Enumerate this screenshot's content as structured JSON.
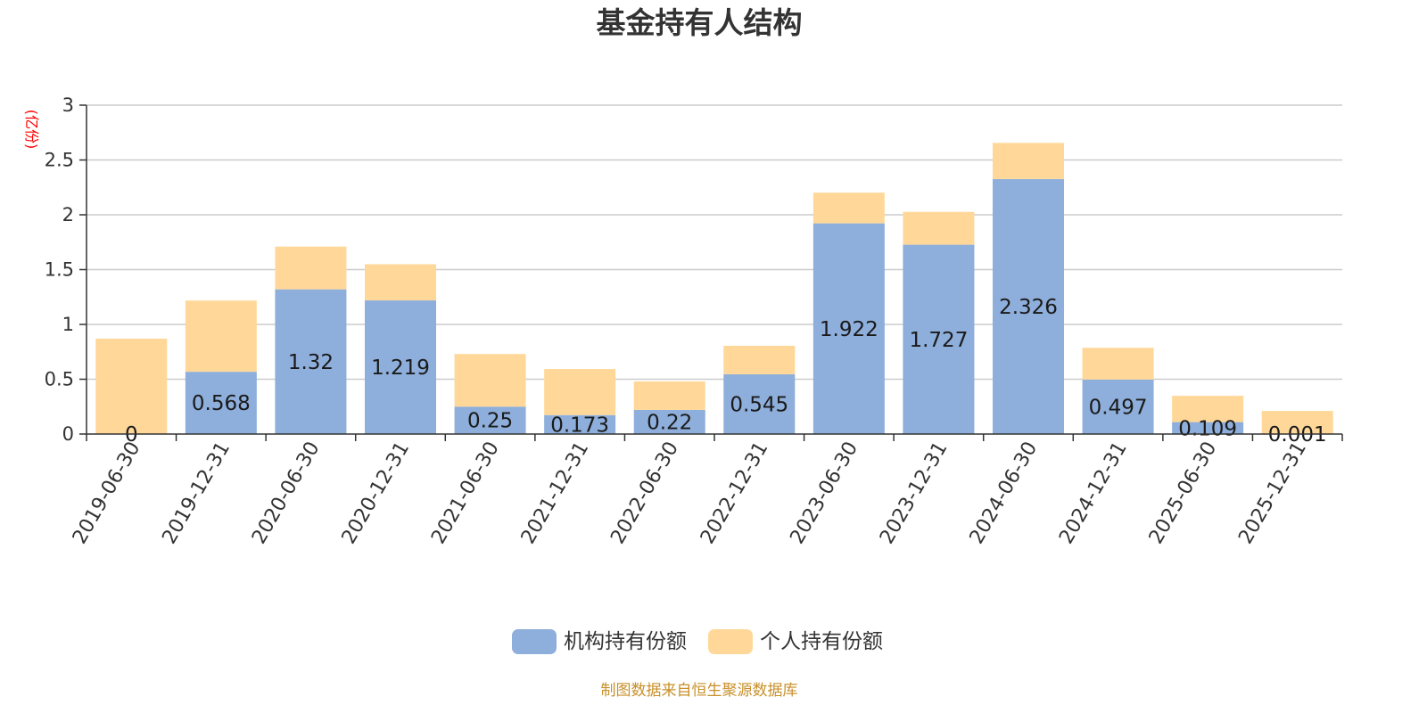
{
  "chart_data": {
    "type": "bar",
    "stacked": true,
    "title": "基金持有人结构",
    "ylabel": "(亿份)",
    "xlabel": "",
    "ylim": [
      0,
      3
    ],
    "yticks": [
      0,
      0.5,
      1,
      1.5,
      2,
      2.5,
      3
    ],
    "ytick_labels": [
      "0",
      "0.5",
      "1",
      "1.5",
      "2",
      "2.5",
      "3"
    ],
    "grid": true,
    "legend_position": "bottom-center",
    "categories": [
      "2019-06-30",
      "2019-12-31",
      "2020-06-30",
      "2020-12-31",
      "2021-06-30",
      "2021-12-31",
      "2022-06-30",
      "2022-12-31",
      "2023-06-30",
      "2023-12-31",
      "2024-06-30",
      "2024-12-31",
      "2025-06-30",
      "2025-12-31"
    ],
    "series": [
      {
        "name": "机构持有份额",
        "color": "#8eaedb",
        "values": [
          0,
          0.568,
          1.32,
          1.219,
          0.25,
          0.173,
          0.22,
          0.545,
          1.922,
          1.727,
          2.326,
          0.497,
          0.109,
          0.001
        ],
        "labels": [
          "0",
          "0.568",
          "1.32",
          "1.219",
          "0.25",
          "0.173",
          "0.22",
          "0.545",
          "1.922",
          "1.727",
          "2.326",
          "0.497",
          "0.109",
          "0.001"
        ]
      },
      {
        "name": "个人持有份额",
        "color": "#ffd899",
        "values": [
          0.87,
          0.65,
          0.39,
          0.33,
          0.48,
          0.42,
          0.26,
          0.26,
          0.28,
          0.3,
          0.33,
          0.29,
          0.24,
          0.21
        ]
      }
    ]
  },
  "source": "制图数据来自恒生聚源数据库",
  "colors": {
    "title": "#333333",
    "axis": "#333333",
    "grid": "#cccccc",
    "ylabel": "#ff0000",
    "source": "#c8902a"
  }
}
